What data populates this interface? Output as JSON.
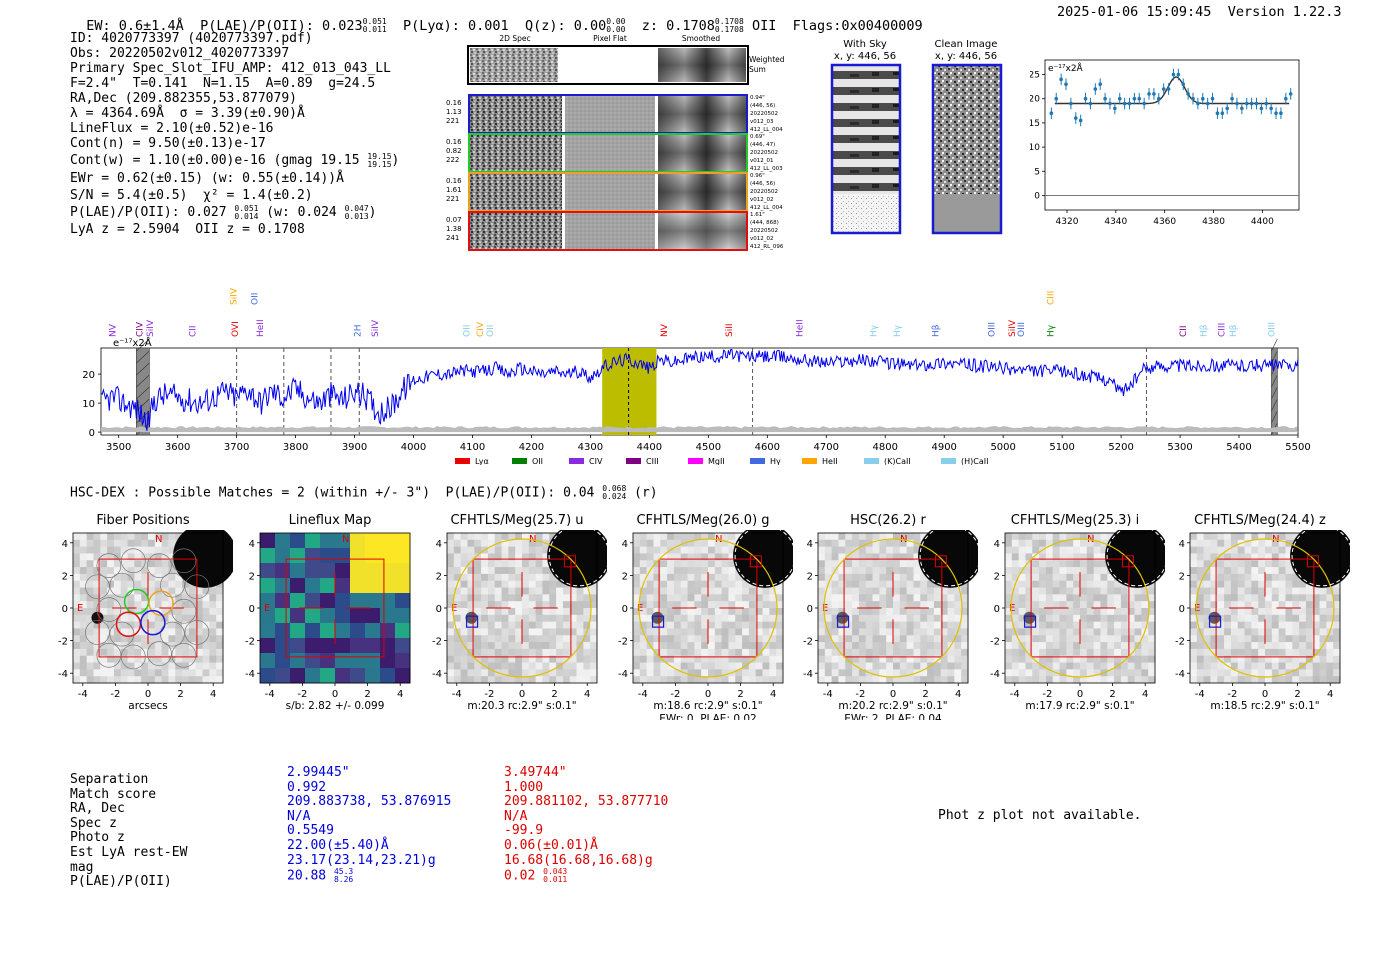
{
  "header": {
    "ew": "EW: 0.6±1.4Å",
    "plae_label": "P(LAE)/P(OII): 0.023",
    "plae_hi": "0.051",
    "plae_lo": "0.011",
    "plya": "P(Lyα): 0.001",
    "qz_label": "Q(z): 0.00",
    "qz_hi": "0.00",
    "qz_lo": "0.00",
    "z_label": "z: 0.1708",
    "z_hi": "0.1708",
    "z_lo": "0.1708",
    "z_line": "OII",
    "flags": "Flags:0x00400009",
    "date": "2025-01-06 15:09:45",
    "version": "Version 1.22.3"
  },
  "info": {
    "lines": [
      "ID: 4020773397 (4020773397.pdf)",
      "Obs: 20220502v012_4020773397",
      "Primary Spec_Slot_IFU_AMP: 412_013_043_LL",
      "F=2.4\"  T=0.141  N=1.15  A=0.89  g=24.5",
      "RA,Dec (209.882355,53.877079)",
      "λ = 4364.69Å  σ = 3.39(±0.90)Å",
      "LineFlux = 2.10(±0.52)e-16",
      "Cont(n) = 9.50(±0.13)e-17"
    ],
    "contw": "Cont(w) = 1.10(±0.00)e-16 (gmag 19.15",
    "contw_hi": "19.15",
    "contw_lo": "19.15",
    "contw_end": ")",
    "ewr": "EWr = 0.62(±0.15) (w: 0.55(±0.14))Å",
    "sn": "S/N = 5.4(±0.5)  χ² = 1.4(±0.2)",
    "plae": "P(LAE)/P(OII): 0.027",
    "plae_hi": "0.051",
    "plae_lo": "0.014",
    "plae_w": "(w: 0.024",
    "plae_w_hi": "0.047",
    "plae_w_lo": "0.013",
    "plae_w_end": ")",
    "lyaz": "LyA z = 2.5904  OII z = 0.1708"
  },
  "cutouts": {
    "col_labels": [
      "2D Spec",
      "Pixel Flat",
      "Smoothed"
    ],
    "weighted_label": "Weighted Sum",
    "rows": [
      {
        "left": [
          "0.16",
          "1.13",
          "221"
        ],
        "right": [
          "0.94\"",
          "(446, 56)",
          "20220502",
          "v012_03",
          "412_LL_004"
        ],
        "color": "#1a1ad0"
      },
      {
        "left": [
          "0.16",
          "0.82",
          "222"
        ],
        "right": [
          "0.69\"",
          "(446, 47)",
          "20220502",
          "v012_01",
          "412_LL_003"
        ],
        "color": "#22cc22"
      },
      {
        "left": [
          "0.16",
          "1.61",
          "221"
        ],
        "right": [
          "0.96\"",
          "(446, 56)",
          "20220502",
          "v012_02",
          "412_LL_004"
        ],
        "color": "#f0a020"
      },
      {
        "left": [
          "0.07",
          "1.38",
          "241"
        ],
        "right": [
          "1.61\"",
          "(444, 868)",
          "20220502",
          "v012_02",
          "412_RL_096"
        ],
        "color": "#e01010"
      }
    ],
    "with_sky_title": "With Sky",
    "with_sky_sub": "x, y: 446, 56",
    "clean_title": "Clean Image",
    "clean_sub": "x, y: 446, 56"
  },
  "zoom_chart": {
    "type": "line",
    "unit_label": "e⁻¹⁷x2Å",
    "xlim": [
      4311,
      4415
    ],
    "ylim": [
      -3,
      28
    ],
    "xticks": [
      4320,
      4340,
      4360,
      4380,
      4400
    ],
    "yticks": [
      0,
      5,
      10,
      15,
      20,
      25
    ],
    "x": [
      4313.6,
      4315.6,
      4317.6,
      4319.6,
      4321.6,
      4323.6,
      4325.6,
      4327.6,
      4329.6,
      4331.6,
      4333.6,
      4335.6,
      4337.6,
      4339.6,
      4341.6,
      4343.6,
      4345.6,
      4347.6,
      4349.6,
      4351.6,
      4353.6,
      4355.6,
      4357.6,
      4359.6,
      4361.6,
      4363.6,
      4365.6,
      4367.6,
      4369.6,
      4371.6,
      4373.6,
      4375.6,
      4377.6,
      4379.6,
      4381.6,
      4383.6,
      4385.6,
      4387.6,
      4389.6,
      4391.6,
      4393.6,
      4395.6,
      4397.6,
      4399.6,
      4401.6,
      4403.6,
      4405.6,
      4407.6,
      4409.6,
      4411.6
    ],
    "y": [
      17,
      20,
      24,
      23,
      19,
      16,
      15.5,
      20,
      19,
      22,
      23,
      20,
      19,
      18,
      20,
      19,
      19,
      20,
      20,
      19,
      21,
      21,
      20,
      22,
      22,
      25,
      25,
      23,
      21,
      20,
      19,
      20,
      19,
      20,
      17,
      17,
      18,
      20,
      19,
      18,
      19,
      19,
      19,
      18,
      19,
      18,
      17,
      17,
      20,
      21
    ],
    "err": [
      1.2,
      1.2,
      1.2,
      1.2,
      1.2,
      1.2,
      1.2,
      1.2,
      1.2,
      1.2,
      1.2,
      1.2,
      1.2,
      1.2,
      1.2,
      1.2,
      1.2,
      1.2,
      1.2,
      1.2,
      1.2,
      1.2,
      1.2,
      1.2,
      1.2,
      1.2,
      1.2,
      1.2,
      1.2,
      1.2,
      1.2,
      1.2,
      1.2,
      1.2,
      1.2,
      1.2,
      1.2,
      1.2,
      1.2,
      1.2,
      1.2,
      1.2,
      1.2,
      1.2,
      1.2,
      1.2,
      1.2,
      1.2,
      1.2,
      1.2
    ],
    "fit_baseline": 19,
    "fit_center": 4364.7,
    "fit_sigma": 3.39,
    "fit_amplitude": 5.5
  },
  "main_chart": {
    "type": "line",
    "unit_label": "e⁻¹⁷x2Å",
    "xlim": [
      3470,
      5500
    ],
    "ylim": [
      -1,
      29
    ],
    "xticks": [
      3500,
      3600,
      3700,
      3800,
      3900,
      4000,
      4100,
      4200,
      4300,
      4400,
      4500,
      4600,
      4700,
      4800,
      4900,
      5000,
      5100,
      5200,
      5300,
      5400,
      5500
    ],
    "yticks": [
      0,
      10,
      20
    ],
    "highlight": [
      4320,
      4412
    ],
    "line_marker": 4364.7,
    "dashed_lines": [
      3700,
      3780,
      3860,
      3908,
      4575,
      5243
    ],
    "masked_regions": [
      [
        3530,
        3552
      ],
      [
        5455,
        5465
      ]
    ],
    "knots": [
      [
        3470,
        10
      ],
      [
        3490,
        12
      ],
      [
        3510,
        10
      ],
      [
        3530,
        8
      ],
      [
        3550,
        3
      ],
      [
        3560,
        11
      ],
      [
        3580,
        13
      ],
      [
        3600,
        12
      ],
      [
        3620,
        11
      ],
      [
        3640,
        10
      ],
      [
        3660,
        12
      ],
      [
        3680,
        14
      ],
      [
        3700,
        12
      ],
      [
        3720,
        15
      ],
      [
        3740,
        10
      ],
      [
        3760,
        14
      ],
      [
        3780,
        12
      ],
      [
        3800,
        15
      ],
      [
        3820,
        12
      ],
      [
        3840,
        10
      ],
      [
        3860,
        13
      ],
      [
        3880,
        11
      ],
      [
        3900,
        14
      ],
      [
        3920,
        12
      ],
      [
        3940,
        7
      ],
      [
        3960,
        8
      ],
      [
        3980,
        14
      ],
      [
        4000,
        18
      ],
      [
        4020,
        19
      ],
      [
        4040,
        20
      ],
      [
        4060,
        20
      ],
      [
        4080,
        21
      ],
      [
        4100,
        21
      ],
      [
        4120,
        21
      ],
      [
        4140,
        22
      ],
      [
        4160,
        20
      ],
      [
        4180,
        22
      ],
      [
        4200,
        21
      ],
      [
        4220,
        20
      ],
      [
        4240,
        21
      ],
      [
        4260,
        20
      ],
      [
        4280,
        21
      ],
      [
        4300,
        19
      ],
      [
        4320,
        22
      ],
      [
        4340,
        24
      ],
      [
        4360,
        25
      ],
      [
        4380,
        24
      ],
      [
        4400,
        22
      ],
      [
        4420,
        25
      ],
      [
        4440,
        24
      ],
      [
        4460,
        25
      ],
      [
        4480,
        26
      ],
      [
        4500,
        26
      ],
      [
        4520,
        26
      ],
      [
        4540,
        27
      ],
      [
        4560,
        26
      ],
      [
        4580,
        26
      ],
      [
        4620,
        26
      ],
      [
        4660,
        25
      ],
      [
        4700,
        24
      ],
      [
        4760,
        25
      ],
      [
        4800,
        24
      ],
      [
        4850,
        23
      ],
      [
        4900,
        24
      ],
      [
        4950,
        23
      ],
      [
        5000,
        22
      ],
      [
        5050,
        21
      ],
      [
        5100,
        21
      ],
      [
        5150,
        19
      ],
      [
        5180,
        18
      ],
      [
        5200,
        14
      ],
      [
        5220,
        17
      ],
      [
        5240,
        22
      ],
      [
        5270,
        23
      ],
      [
        5300,
        23
      ],
      [
        5350,
        23
      ],
      [
        5400,
        23
      ],
      [
        5450,
        23
      ],
      [
        5500,
        23
      ]
    ],
    "legend": [
      {
        "label": "Lyα",
        "color": "#ee0000"
      },
      {
        "label": "OII",
        "color": "#008000"
      },
      {
        "label": "CIV",
        "color": "#8a2be2"
      },
      {
        "label": "CIII",
        "color": "#800080"
      },
      {
        "label": "MgII",
        "color": "#ff00ff"
      },
      {
        "label": "Hγ",
        "color": "#4169e1"
      },
      {
        "label": "HeII",
        "color": "#ffa500"
      },
      {
        "label": "(K)CaII",
        "color": "#87ceeb"
      },
      {
        "label": "(H)CaII",
        "color": "#87ceeb"
      }
    ],
    "line_labels": [
      {
        "x": 3495,
        "text": "NV",
        "color": "#8a2be2",
        "row": 1
      },
      {
        "x": 3540,
        "text": "CIV",
        "color": "#800080",
        "row": 1
      },
      {
        "x": 3558,
        "text": "SiIV",
        "color": "#8a2be2",
        "row": 1
      },
      {
        "x": 3630,
        "text": "CII",
        "color": "#8a2be2",
        "row": 1
      },
      {
        "x": 3700,
        "text": "SiIV",
        "color": "#ffa500",
        "row": 0
      },
      {
        "x": 3702,
        "text": "OVI",
        "color": "#ee0000",
        "row": 1
      },
      {
        "x": 3735,
        "text": "OII",
        "color": "#4169e1",
        "row": 0
      },
      {
        "x": 3745,
        "text": "HeII",
        "color": "#8a2be2",
        "row": 1
      },
      {
        "x": 3910,
        "text": "2H",
        "color": "#4169e1",
        "row": 1
      },
      {
        "x": 3940,
        "text": "SiIV",
        "color": "#8a2be2",
        "row": 1
      },
      {
        "x": 4095,
        "text": "OII",
        "color": "#87ceeb",
        "row": 1
      },
      {
        "x": 4118,
        "text": "CIV",
        "color": "#ffa500",
        "row": 1
      },
      {
        "x": 4135,
        "text": "OII",
        "color": "#87ceeb",
        "row": 1
      },
      {
        "x": 4430,
        "text": "NV",
        "color": "#ee0000",
        "row": 1
      },
      {
        "x": 4540,
        "text": "SiII",
        "color": "#ee0000",
        "row": 1
      },
      {
        "x": 4660,
        "text": "HeII",
        "color": "#8a2be2",
        "row": 1
      },
      {
        "x": 4785,
        "text": "Hγ",
        "color": "#87ceeb",
        "row": 1
      },
      {
        "x": 4825,
        "text": "Hγ",
        "color": "#87ceeb",
        "row": 1
      },
      {
        "x": 4890,
        "text": "Hβ",
        "color": "#4169e1",
        "row": 1
      },
      {
        "x": 4985,
        "text": "OIII",
        "color": "#4169e1",
        "row": 1
      },
      {
        "x": 5020,
        "text": "SiIV",
        "color": "#ee0000",
        "row": 1
      },
      {
        "x": 5035,
        "text": "OIII",
        "color": "#4169e1",
        "row": 1
      },
      {
        "x": 5085,
        "text": "CIII",
        "color": "#ffa500",
        "row": 0
      },
      {
        "x": 5085,
        "text": "Hγ",
        "color": "#008000",
        "row": 1
      },
      {
        "x": 5310,
        "text": "CII",
        "color": "#800080",
        "row": 1
      },
      {
        "x": 5345,
        "text": "Hβ",
        "color": "#87ceeb",
        "row": 1
      },
      {
        "x": 5375,
        "text": "CIII",
        "color": "#8a2be2",
        "row": 1
      },
      {
        "x": 5395,
        "text": "Hβ",
        "color": "#87ceeb",
        "row": 1
      },
      {
        "x": 5460,
        "text": "OIII",
        "color": "#87ceeb",
        "row": 1
      }
    ]
  },
  "hsc": {
    "label": "HSC-DEX : Possible Matches = 2 (within +/- 3\")  P(LAE)/P(OII): 0.04",
    "hi": "0.068",
    "lo": "0.024",
    "end": "(r)"
  },
  "panels": [
    {
      "title": "Fiber Positions",
      "caption": [
        "arcsecs"
      ],
      "kind": "fibers"
    },
    {
      "title": "Lineflux Map",
      "caption": [
        "s/b: 2.82 +/- 0.099"
      ],
      "kind": "flux"
    },
    {
      "title": "CFHTLS/Meg(25.7) u",
      "caption": [
        "m:20.3 rc:2.9\"  s:0.1\""
      ],
      "kind": "img"
    },
    {
      "title": "CFHTLS/Meg(26.0) g",
      "caption": [
        "m:18.6 rc:2.9\"  s:0.1\"",
        "EWr: 0, PLAE: 0.02"
      ],
      "kind": "img"
    },
    {
      "title": "HSC(26.2) r",
      "caption": [
        "m:20.2 rc:2.9\"  s:0.1\"",
        "EWr: 2, PLAE: 0.04"
      ],
      "kind": "img"
    },
    {
      "title": "CFHTLS/Meg(25.3) i",
      "caption": [
        "m:17.9 rc:2.9\"  s:0.1\""
      ],
      "kind": "img"
    },
    {
      "title": "CFHTLS/Meg(24.4) z",
      "caption": [
        "m:18.5 rc:2.9\"  s:0.1\""
      ],
      "kind": "img"
    }
  ],
  "panel_axes": {
    "ticks": [
      "-4",
      "-2",
      "0",
      "2",
      "4"
    ],
    "n": "N",
    "e": "E"
  },
  "table": {
    "labels": [
      "Separation",
      "Match score",
      "RA, Dec",
      "Spec z",
      "Photo z",
      "Est LyA rest-EW",
      "mag",
      "P(LAE)/P(OII)"
    ],
    "blue": [
      "2.99445\"",
      "0.992",
      "209.883738, 53.876915",
      "N/A",
      "0.5549",
      "22.00(±5.40)Å",
      "23.17(23.14,23.21)g",
      "20.88"
    ],
    "blue_hi": "45.3",
    "blue_lo": "8.26",
    "red": [
      "3.49744\"",
      "1.000",
      "209.881102, 53.877710",
      "N/A",
      "-99.9",
      "0.06(±0.01)Å",
      "16.68(16.68,16.68)g",
      "0.02"
    ],
    "red_hi": "0.043",
    "red_lo": "0.011"
  },
  "photz_note": "Phot z plot not available.",
  "chart_data": [
    {
      "type": "line",
      "title": "zoomed emission line fit",
      "ylabel": "e⁻¹⁷x2Å",
      "xlim": [
        4311,
        4415
      ],
      "ylim": [
        -3,
        28
      ]
    },
    {
      "type": "line",
      "title": "full spectrum",
      "ylabel": "e⁻¹⁷x2Å",
      "xlim": [
        3470,
        5500
      ],
      "ylim": [
        -1,
        29
      ]
    }
  ]
}
